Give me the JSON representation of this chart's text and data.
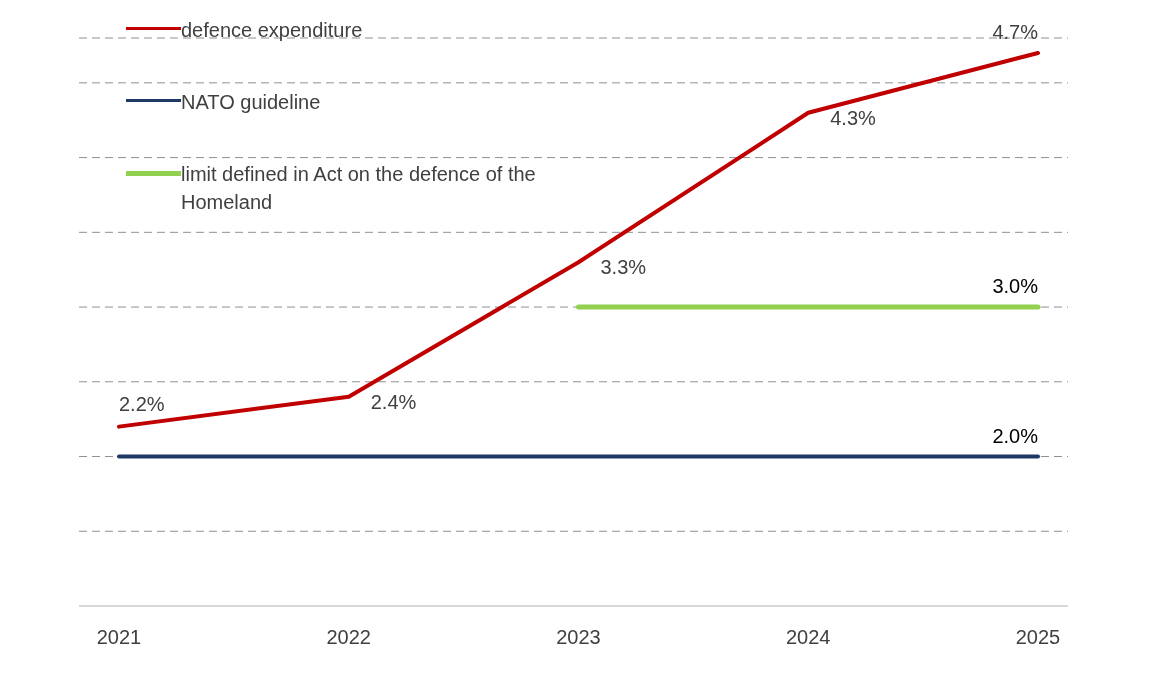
{
  "chart_data": {
    "type": "line",
    "categories": [
      "2021",
      "2022",
      "2023",
      "2024",
      "2025"
    ],
    "series": [
      {
        "name": "defence expenditure",
        "color": "#c00000",
        "values": [
          2.2,
          2.4,
          3.3,
          4.3,
          4.7
        ],
        "value_labels": [
          "2.2%",
          "2.4%",
          "3.3%",
          "4.3%",
          "4.7%"
        ]
      },
      {
        "name": "NATO guideline",
        "color": "#1f3864",
        "values": [
          2.0,
          2.0,
          2.0,
          2.0,
          2.0
        ],
        "value_labels": [
          null,
          null,
          null,
          null,
          "2.0%"
        ]
      },
      {
        "name": "limit defined in Act on the defence of the Homeland",
        "color": "#92d050",
        "values": [
          null,
          null,
          3.0,
          3.0,
          3.0
        ],
        "value_labels": [
          null,
          null,
          null,
          null,
          "3.0%"
        ]
      }
    ],
    "ylim": [
      1,
      4.8
    ],
    "yticks": [
      {
        "value": 1.5,
        "label": null
      },
      {
        "value": 2,
        "label": null
      },
      {
        "value": 2.5,
        "label": null
      },
      {
        "value": 3,
        "label": null
      },
      {
        "value": 3.5,
        "label": null
      },
      {
        "value": 4,
        "label": null
      },
      {
        "value": 4.5,
        "label": null
      }
    ],
    "grid": "y",
    "legend": "top left",
    "marker": "none",
    "line_style": "solid"
  }
}
